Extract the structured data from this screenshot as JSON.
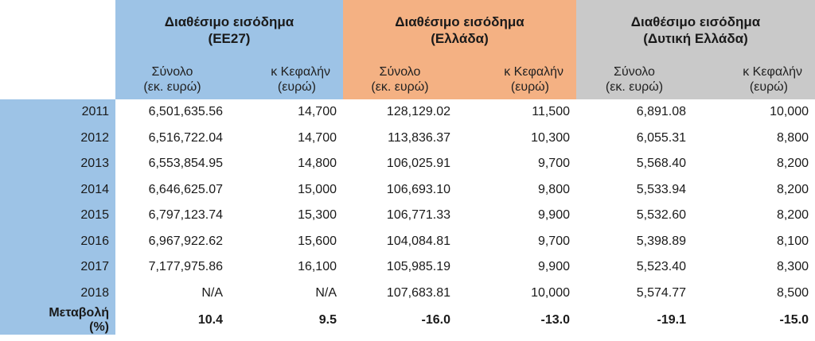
{
  "groups": [
    {
      "title_line1": "Διαθέσιμο εισόδημα",
      "title_line2": "(ΕΕ27)"
    },
    {
      "title_line1": "Διαθέσιμο εισόδημα",
      "title_line2": "(Ελλάδα)"
    },
    {
      "title_line1": "Διαθέσιμο εισόδημα",
      "title_line2": "(Δυτική Ελλάδα)"
    }
  ],
  "subheaders": {
    "total_line1": "Σύνολο",
    "total_line2": "(εκ. ευρώ)",
    "percap_line1": "κ Κεφαλήν",
    "percap_line2": "(ευρώ)"
  },
  "rows": [
    {
      "year": "2011",
      "v": [
        "6,501,635.56",
        "14,700",
        "128,129.02",
        "11,500",
        "6,891.08",
        "10,000"
      ]
    },
    {
      "year": "2012",
      "v": [
        "6,516,722.04",
        "14,700",
        "113,836.37",
        "10,300",
        "6,055.31",
        "8,800"
      ]
    },
    {
      "year": "2013",
      "v": [
        "6,553,854.95",
        "14,800",
        "106,025.91",
        "9,700",
        "5,568.40",
        "8,200"
      ]
    },
    {
      "year": "2014",
      "v": [
        "6,646,625.07",
        "15,000",
        "106,693.10",
        "9,800",
        "5,533.94",
        "8,200"
      ]
    },
    {
      "year": "2015",
      "v": [
        "6,797,123.74",
        "15,300",
        "106,771.33",
        "9,900",
        "5,532.60",
        "8,200"
      ]
    },
    {
      "year": "2016",
      "v": [
        "6,967,922.62",
        "15,600",
        "104,084.81",
        "9,700",
        "5,398.89",
        "8,100"
      ]
    },
    {
      "year": "2017",
      "v": [
        "7,177,975.86",
        "16,100",
        "105,985.19",
        "9,900",
        "5,523.40",
        "8,300"
      ]
    },
    {
      "year": "2018",
      "v": [
        "N/A",
        "N/A",
        "107,683.81",
        "10,000",
        "5,574.77",
        "8,500"
      ]
    }
  ],
  "change": {
    "label_line1": "Μεταβολή",
    "label_line2": "(%)",
    "v": [
      "10.4",
      "9.5",
      "-16.0",
      "-13.0",
      "-19.1",
      "-15.0"
    ]
  }
}
